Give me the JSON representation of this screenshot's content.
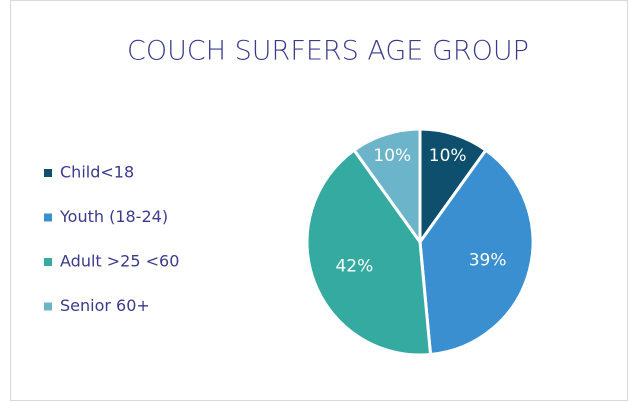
{
  "chart_data": {
    "type": "pie",
    "title": "COUCH SURFERS AGE GROUP",
    "categories": [
      "Child<18",
      "Youth (18-24)",
      "Adult >25 <60",
      "Senior 60+"
    ],
    "values": [
      10,
      39,
      42,
      10
    ],
    "value_labels": [
      "10%",
      "39%",
      "42%",
      "10%"
    ],
    "colors": [
      "#0d4f6d",
      "#3a8fd1",
      "#35aaa0",
      "#6bb4c9"
    ],
    "legend": "left"
  }
}
